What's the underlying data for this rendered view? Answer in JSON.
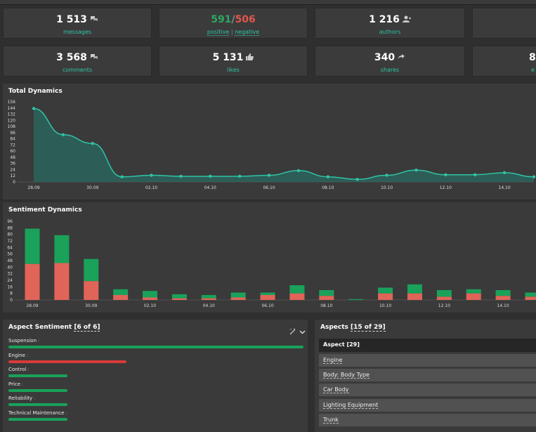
{
  "kpis_row1": [
    {
      "value": "1 513",
      "label": "messages",
      "icon": "speech-bubbles-icon"
    },
    {
      "positive": "591",
      "sep": "/",
      "negative": "506",
      "label_pos": "positive",
      "label_neg": "negative"
    },
    {
      "value": "1 216",
      "label": "authors",
      "icon": "user-icon"
    }
  ],
  "kpis_row2": [
    {
      "value": "3 568",
      "label": "comments",
      "icon": "speech-bubbles-icon"
    },
    {
      "value": "5 131",
      "label": "likes",
      "icon": "thumbs-up-icon"
    },
    {
      "value": "340",
      "label": "shares",
      "icon": "share-icon"
    },
    {
      "value": "8",
      "label": "e"
    }
  ],
  "total_dynamics": {
    "title": "Total Dynamics",
    "chart_data": {
      "type": "area",
      "x": [
        "28.09",
        "29.09",
        "30.09",
        "01.10",
        "02.10",
        "03.10",
        "04.10",
        "05.10",
        "06.10",
        "07.10",
        "08.10",
        "09.10",
        "10.10",
        "11.10",
        "12.10",
        "13.10",
        "14.10",
        "15.10"
      ],
      "xticks": [
        "28.09",
        "30.09",
        "02.10",
        "04.10",
        "06.10",
        "08.10",
        "10.10",
        "12.10",
        "14.10"
      ],
      "values": [
        143,
        92,
        75,
        10,
        13,
        11,
        11,
        11,
        13,
        22,
        10,
        5,
        13,
        23,
        14,
        14,
        18,
        10
      ],
      "yticks": [
        0,
        12,
        24,
        36,
        48,
        60,
        72,
        84,
        96,
        108,
        120,
        132,
        144,
        156
      ],
      "ylim": [
        0,
        156
      ],
      "color": "#2ec4a6"
    }
  },
  "sentiment_dynamics": {
    "title": "Sentiment Dynamics",
    "chart_data": {
      "type": "bar",
      "stacked": true,
      "x": [
        "28.09",
        "29.09",
        "30.09",
        "01.10",
        "02.10",
        "03.10",
        "04.10",
        "05.10",
        "06.10",
        "07.10",
        "08.10",
        "09.10",
        "10.10",
        "11.10",
        "12.10",
        "13.10",
        "14.10",
        "15.10"
      ],
      "xticks": [
        "28.09",
        "30.09",
        "02.10",
        "04.10",
        "06.10",
        "08.10",
        "10.10",
        "12.10",
        "14.10"
      ],
      "series": [
        {
          "values": [
            44,
            45,
            23,
            6,
            3,
            2,
            2,
            3,
            6,
            8,
            5,
            0,
            8,
            8,
            4,
            8,
            5,
            4
          ],
          "color": "#e06558"
        },
        {
          "values": [
            43,
            34,
            27,
            7,
            8,
            5,
            4,
            6,
            3,
            10,
            7,
            1,
            7,
            11,
            8,
            5,
            7,
            5
          ],
          "color": "#1aa15a"
        }
      ],
      "yticks": [
        0,
        8,
        16,
        24,
        32,
        40,
        48,
        56,
        64,
        72,
        80,
        88,
        96
      ],
      "ylim": [
        0,
        96
      ]
    }
  },
  "aspect_sentiment": {
    "title": "Aspect Sentiment",
    "count": "[6 of 6]",
    "items": [
      {
        "label": "Suspension",
        "dot": ":",
        "fraction": 1.0,
        "color": "#1aa15a"
      },
      {
        "label": "Engine",
        "dot": ":",
        "fraction": 0.4,
        "color": "#d93a3a"
      },
      {
        "label": "Control",
        "dot": ":",
        "fraction": 0.2,
        "color": "#1aa15a"
      },
      {
        "label": "Price",
        "dot": ":",
        "fraction": 0.2,
        "color": "#1aa15a"
      },
      {
        "label": "Reliability",
        "dot": ":",
        "fraction": 0.2,
        "color": "#1aa15a"
      },
      {
        "label": "Technical Maintenance",
        "dot": ":",
        "fraction": 0.2,
        "color": "#1aa15a"
      }
    ]
  },
  "aspects": {
    "title": "Aspects",
    "count": "[15 of 29]",
    "header": "Aspect [29]",
    "rows": [
      "Engine",
      "Body: Body Type",
      "Car Body",
      "Lighting Equipment",
      "Trunk"
    ]
  }
}
